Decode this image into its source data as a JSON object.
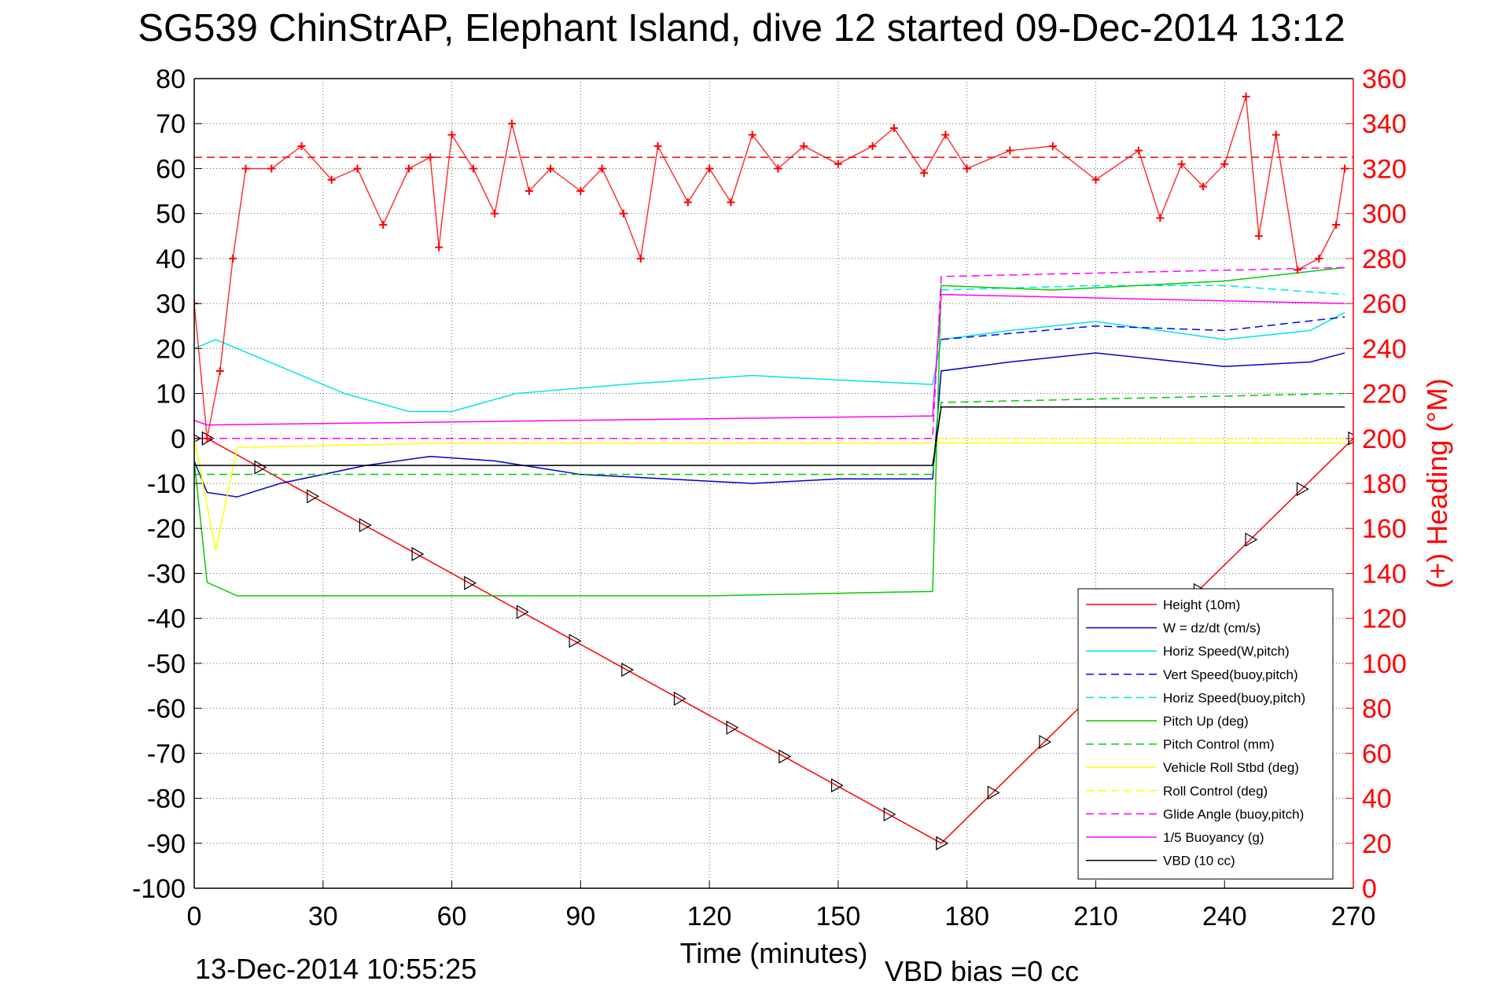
{
  "title": "SG539 ChinStrAP, Elephant Island, dive 12 started 09-Dec-2014 13:12",
  "footer": {
    "timestamp": "13-Dec-2014 10:55:25",
    "vbd_bias": "VBD bias =0 cc"
  },
  "chart_data": {
    "type": "line",
    "xlabel": "Time (minutes)",
    "ylabel_right": "(+) Heading (°M)",
    "xlim": [
      0,
      270
    ],
    "ylim_left": [
      -100,
      80
    ],
    "ylim_right": [
      0,
      360
    ],
    "x_ticks": [
      "0",
      "30",
      "60",
      "90",
      "120",
      "150",
      "180",
      "210",
      "240",
      "270"
    ],
    "y_ticks_left": [
      "80",
      "70",
      "60",
      "50",
      "40",
      "30",
      "20",
      "10",
      "0",
      "-10",
      "-20",
      "-30",
      "-40",
      "-50",
      "-60",
      "-70",
      "-80",
      "-90",
      "-100"
    ],
    "y_ticks_right": [
      "360",
      "340",
      "320",
      "300",
      "280",
      "260",
      "240",
      "220",
      "200",
      "180",
      "160",
      "140",
      "120",
      "100",
      "80",
      "60",
      "40",
      "20",
      "0"
    ],
    "grid": true,
    "legend_position": "lower-right",
    "target_heading": 325,
    "series": [
      {
        "name": "Height (10m)",
        "color": "#ff0000",
        "style": "solid",
        "x": [
          0,
          3,
          174,
          270
        ],
        "y": [
          0,
          0,
          -90,
          0
        ]
      },
      {
        "name": "W = dz/dt (cm/s)",
        "color": "#0000cc",
        "style": "solid",
        "x": [
          0,
          3,
          10,
          20,
          40,
          55,
          70,
          90,
          110,
          130,
          150,
          172,
          174,
          190,
          210,
          240,
          260,
          268
        ],
        "y": [
          -5,
          -12,
          -13,
          -10,
          -6,
          -4,
          -5,
          -8,
          -9,
          -10,
          -9,
          -9,
          15,
          17,
          19,
          16,
          17,
          19
        ]
      },
      {
        "name": "Horiz Speed(W,pitch)",
        "color": "#00e5e5",
        "style": "solid",
        "x": [
          0,
          5,
          20,
          35,
          50,
          60,
          75,
          100,
          130,
          150,
          172,
          174,
          190,
          210,
          240,
          260,
          268
        ],
        "y": [
          20,
          22,
          16,
          10,
          6,
          6,
          10,
          12,
          14,
          13,
          12,
          22,
          24,
          26,
          22,
          24,
          28
        ]
      },
      {
        "name": "Vert Speed(buoy,pitch)",
        "color": "#0000ff",
        "style": "dashed",
        "x": [
          174,
          210,
          240,
          268
        ],
        "y": [
          22,
          25,
          24,
          27
        ]
      },
      {
        "name": "Horiz Speed(buoy,pitch)",
        "color": "#00e5e5",
        "style": "dashed",
        "x": [
          174,
          210,
          240,
          268
        ],
        "y": [
          33,
          34,
          34,
          32
        ]
      },
      {
        "name": "Pitch Up (deg)",
        "color": "#00cc00",
        "style": "solid",
        "x": [
          0,
          3,
          10,
          60,
          120,
          172,
          174,
          200,
          240,
          268
        ],
        "y": [
          -5,
          -32,
          -35,
          -35,
          -35,
          -34,
          34,
          33,
          35,
          38
        ]
      },
      {
        "name": "Pitch Control (mm)",
        "color": "#00cc00",
        "style": "dashed",
        "x": [
          0,
          172,
          174,
          268
        ],
        "y": [
          -8,
          -8,
          8,
          10
        ]
      },
      {
        "name": "Vehicle Roll Stbd (deg)",
        "color": "#ffff00",
        "style": "solid",
        "x": [
          0,
          5,
          10,
          60,
          120,
          172,
          174,
          268
        ],
        "y": [
          0,
          -25,
          -2,
          -1,
          -1,
          -1,
          -1,
          -1
        ]
      },
      {
        "name": "Roll Control (deg)",
        "color": "#ffff00",
        "style": "dashed",
        "x": [
          0,
          172,
          268
        ],
        "y": [
          0,
          0,
          0
        ]
      },
      {
        "name": "Glide Angle (buoy,pitch)",
        "color": "#ff00ff",
        "style": "dashed",
        "x": [
          0,
          172,
          174,
          268
        ],
        "y": [
          0,
          0,
          36,
          38
        ]
      },
      {
        "name": "1/5 Buoyancy (g)",
        "color": "#ff00ff",
        "style": "solid",
        "x": [
          0,
          3,
          172,
          174,
          268
        ],
        "y": [
          4,
          3,
          5,
          32,
          30
        ]
      },
      {
        "name": "VBD (10 cc)",
        "color": "#000000",
        "style": "solid",
        "x": [
          0,
          3,
          172,
          174,
          268
        ],
        "y": [
          -6,
          -6,
          -6,
          7,
          7
        ]
      },
      {
        "name": "Heading",
        "color": "#ff0000",
        "style": "markers",
        "axis": "right",
        "x": [
          0,
          3,
          6,
          9,
          12,
          18,
          25,
          32,
          38,
          44,
          50,
          55,
          57,
          60,
          65,
          70,
          74,
          78,
          83,
          90,
          95,
          100,
          104,
          108,
          115,
          120,
          125,
          130,
          136,
          142,
          150,
          158,
          163,
          170,
          175,
          180,
          190,
          200,
          210,
          220,
          225,
          230,
          235,
          240,
          245,
          248,
          252,
          257,
          262,
          266,
          268
        ],
        "y": [
          260,
          200,
          230,
          280,
          320,
          320,
          330,
          315,
          320,
          295,
          320,
          325,
          285,
          335,
          320,
          300,
          340,
          310,
          320,
          310,
          320,
          300,
          280,
          330,
          305,
          320,
          305,
          335,
          320,
          330,
          322,
          330,
          338,
          318,
          335,
          320,
          328,
          330,
          315,
          328,
          298,
          322,
          312,
          322,
          352,
          290,
          335,
          275,
          280,
          295,
          320
        ]
      }
    ]
  }
}
